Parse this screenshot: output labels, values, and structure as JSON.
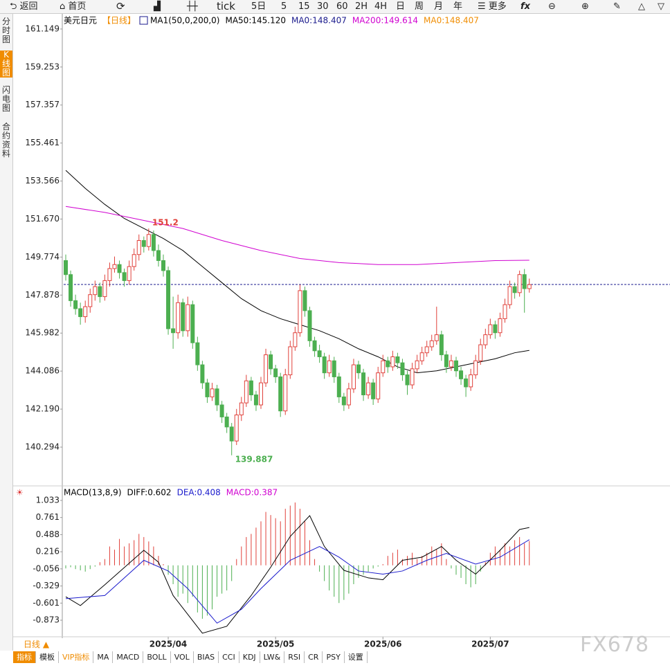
{
  "toolbar": [
    "返回",
    "首页",
    "tick",
    "5日",
    "5",
    "15",
    "30",
    "60",
    "2H",
    "4H",
    "日",
    "周",
    "月",
    "年",
    "更多"
  ],
  "sidebar": [
    "分时图",
    "K线图",
    "闪电图",
    "合约资料"
  ],
  "chart_data": [
    {
      "type": "candlestick",
      "symbol": "美元日元",
      "period": "【日线】",
      "indicator": "MA1(50,0,200,0)",
      "up_color": "#e0403a",
      "down_color": "#4caf50",
      "ylim": [
        138.43,
        161.56
      ],
      "yticks": [
        161.149,
        159.253,
        157.357,
        155.461,
        153.566,
        {
          "value": 151.67,
          "label": "151.670"
        },
        149.774,
        147.878,
        145.982,
        144.086,
        {
          "value": 142.19,
          "label": "142.190"
        },
        140.294
      ],
      "candles": [
        [
          149.6,
          149.9,
          148.6,
          148.9
        ],
        [
          148.9,
          149.1,
          147.3,
          147.6
        ],
        [
          147.6,
          147.9,
          146.9,
          147.2
        ],
        [
          147.2,
          147.5,
          146.4,
          146.8
        ],
        [
          146.8,
          147.6,
          146.5,
          147.3
        ],
        [
          147.3,
          148.2,
          147.0,
          147.9
        ],
        [
          147.9,
          148.6,
          147.6,
          148.3
        ],
        [
          148.3,
          148.5,
          147.5,
          147.8
        ],
        [
          147.8,
          148.9,
          147.6,
          148.6
        ],
        [
          148.6,
          149.5,
          148.3,
          149.2
        ],
        [
          149.2,
          149.8,
          149.0,
          149.4
        ],
        [
          149.4,
          149.6,
          148.7,
          149.0
        ],
        [
          149.0,
          149.2,
          148.3,
          148.6
        ],
        [
          148.6,
          149.6,
          148.4,
          149.3
        ],
        [
          149.3,
          150.2,
          149.1,
          149.9
        ],
        [
          149.9,
          150.9,
          149.6,
          150.6
        ],
        [
          150.6,
          150.8,
          150.0,
          150.3
        ],
        [
          150.3,
          151.2,
          150.1,
          150.9
        ],
        [
          150.9,
          151.1,
          149.8,
          150.1
        ],
        [
          150.1,
          150.4,
          149.3,
          149.6
        ],
        [
          149.6,
          149.9,
          148.8,
          149.1
        ],
        [
          149.1,
          149.3,
          145.9,
          146.2
        ],
        [
          146.2,
          147.8,
          145.2,
          146.0
        ],
        [
          146.0,
          147.9,
          145.7,
          147.5
        ],
        [
          147.5,
          147.7,
          145.8,
          146.1
        ],
        [
          146.1,
          147.8,
          145.8,
          147.4
        ],
        [
          147.4,
          147.6,
          145.2,
          145.5
        ],
        [
          145.5,
          145.8,
          144.1,
          144.4
        ],
        [
          144.4,
          144.6,
          143.2,
          143.5
        ],
        [
          143.5,
          143.7,
          142.5,
          142.8
        ],
        [
          142.8,
          143.5,
          142.6,
          143.2
        ],
        [
          143.2,
          143.4,
          142.1,
          142.4
        ],
        [
          142.4,
          142.6,
          141.5,
          141.8
        ],
        [
          141.8,
          142.0,
          141.0,
          141.3
        ],
        [
          141.3,
          141.5,
          139.887,
          140.6
        ],
        [
          140.6,
          142.2,
          140.4,
          141.9
        ],
        [
          141.9,
          142.8,
          141.6,
          142.5
        ],
        [
          142.5,
          143.9,
          142.3,
          143.6
        ],
        [
          143.6,
          143.8,
          142.6,
          142.9
        ],
        [
          142.9,
          143.1,
          142.1,
          142.4
        ],
        [
          142.4,
          143.8,
          142.2,
          143.5
        ],
        [
          143.5,
          145.2,
          143.3,
          144.9
        ],
        [
          144.9,
          145.1,
          143.9,
          144.2
        ],
        [
          144.2,
          144.4,
          143.5,
          143.8
        ],
        [
          143.8,
          144.0,
          141.8,
          142.1
        ],
        [
          142.1,
          144.2,
          141.9,
          143.9
        ],
        [
          143.9,
          145.6,
          143.7,
          145.3
        ],
        [
          145.3,
          146.3,
          145.1,
          146.0
        ],
        [
          146.0,
          148.4,
          145.8,
          148.1
        ],
        [
          148.1,
          148.3,
          146.8,
          147.1
        ],
        [
          147.1,
          147.3,
          145.3,
          145.6
        ],
        [
          145.6,
          145.8,
          144.8,
          145.1
        ],
        [
          145.1,
          145.4,
          144.5,
          144.8
        ],
        [
          144.8,
          145.0,
          143.7,
          144.0
        ],
        [
          144.0,
          144.9,
          143.8,
          144.6
        ],
        [
          144.6,
          144.8,
          143.5,
          143.8
        ],
        [
          143.8,
          144.0,
          142.5,
          142.8
        ],
        [
          142.8,
          143.0,
          142.1,
          142.4
        ],
        [
          142.4,
          143.5,
          142.2,
          143.2
        ],
        [
          143.2,
          144.7,
          143.0,
          144.4
        ],
        [
          144.4,
          144.6,
          143.7,
          144.0
        ],
        [
          144.0,
          144.2,
          142.6,
          142.9
        ],
        [
          142.9,
          143.8,
          142.7,
          143.5
        ],
        [
          143.5,
          143.7,
          142.4,
          142.7
        ],
        [
          142.7,
          144.3,
          142.5,
          144.0
        ],
        [
          144.0,
          144.9,
          143.8,
          144.6
        ],
        [
          144.6,
          144.8,
          144.0,
          144.3
        ],
        [
          144.3,
          145.1,
          144.1,
          144.8
        ],
        [
          144.8,
          145.0,
          144.2,
          144.5
        ],
        [
          144.5,
          144.7,
          143.6,
          143.9
        ],
        [
          143.9,
          144.1,
          142.9,
          143.4
        ],
        [
          143.4,
          144.5,
          143.2,
          144.2
        ],
        [
          144.2,
          144.9,
          144.0,
          144.6
        ],
        [
          144.6,
          145.3,
          144.4,
          145.0
        ],
        [
          145.0,
          145.6,
          144.8,
          145.3
        ],
        [
          145.3,
          145.9,
          145.1,
          145.6
        ],
        [
          145.6,
          147.3,
          145.4,
          145.9
        ],
        [
          145.9,
          146.1,
          144.6,
          144.9
        ],
        [
          144.9,
          145.1,
          144.0,
          144.3
        ],
        [
          144.3,
          144.9,
          144.1,
          144.6
        ],
        [
          144.6,
          144.8,
          143.8,
          144.1
        ],
        [
          144.1,
          144.3,
          143.4,
          143.7
        ],
        [
          143.7,
          143.9,
          142.8,
          143.3
        ],
        [
          143.3,
          144.2,
          143.1,
          143.9
        ],
        [
          143.9,
          144.9,
          143.7,
          144.6
        ],
        [
          144.6,
          145.7,
          144.4,
          145.4
        ],
        [
          145.4,
          146.2,
          145.2,
          145.9
        ],
        [
          145.9,
          146.7,
          145.7,
          146.4
        ],
        [
          146.4,
          146.6,
          145.7,
          146.0
        ],
        [
          146.0,
          147.0,
          145.8,
          146.7
        ],
        [
          146.7,
          147.7,
          146.5,
          147.4
        ],
        [
          147.4,
          148.6,
          147.2,
          148.3
        ],
        [
          148.3,
          148.5,
          147.7,
          148.0
        ],
        [
          148.0,
          149.1,
          147.8,
          148.9
        ],
        [
          148.9,
          149.181,
          147.0,
          148.2
        ],
        [
          148.2,
          148.7,
          148.0,
          148.4
        ]
      ],
      "series": [
        {
          "name": "MA50:145.120",
          "color": "#000000",
          "x": [
            0,
            4,
            8,
            12,
            16,
            20,
            24,
            28,
            32,
            36,
            40,
            44,
            48,
            52,
            56,
            60,
            64,
            68,
            72,
            76,
            80,
            84,
            88,
            92,
            95
          ],
          "values": [
            154.1,
            153.2,
            152.4,
            151.7,
            151.2,
            150.7,
            150.1,
            149.3,
            148.5,
            147.7,
            147.1,
            146.7,
            146.4,
            146.1,
            145.7,
            145.2,
            144.8,
            144.3,
            144.0,
            144.1,
            144.3,
            144.5,
            144.7,
            145.0,
            145.12
          ]
        },
        {
          "name": "MA0:148.407",
          "color": "#1a1a8c",
          "dashed": true,
          "values": [
            148.407
          ]
        },
        {
          "name": "MA200:149.614",
          "color": "#d000d0",
          "x": [
            0,
            8,
            16,
            24,
            32,
            40,
            48,
            56,
            64,
            72,
            80,
            88,
            95
          ],
          "values": [
            152.3,
            152.0,
            151.6,
            151.2,
            150.6,
            150.1,
            149.7,
            149.5,
            149.4,
            149.4,
            149.5,
            149.6,
            149.614
          ]
        },
        {
          "name": "MA0:148.407",
          "color": "#f08c00",
          "dashed": true,
          "values": [
            148.407
          ]
        }
      ]
    },
    {
      "type": "macd",
      "title": "MACD(13,8,9)",
      "ylim": [
        -1.137,
        1.198
      ],
      "yticks": [
        1.033,
        0.761,
        0.488,
        0.216,
        -0.056,
        -0.329,
        -0.601,
        -0.873
      ],
      "xticks": [
        {
          "value": 21,
          "label": "2025/04"
        },
        {
          "value": 43,
          "label": "2025/05"
        },
        {
          "value": 65,
          "label": "2025/06"
        },
        {
          "value": 87,
          "label": "2025/07"
        }
      ],
      "series": [
        {
          "name": "DIFF:0.602",
          "color": "#000000",
          "x": [
            0,
            3,
            8,
            16,
            19,
            22,
            28,
            33,
            38,
            42,
            46,
            50,
            53,
            57,
            62,
            65,
            69,
            73,
            77,
            80,
            84,
            89,
            93,
            95
          ],
          "values": [
            -0.5,
            -0.64,
            -0.31,
            0.24,
            0.05,
            -0.48,
            -1.08,
            -0.97,
            -0.48,
            -0.03,
            0.46,
            0.79,
            0.3,
            -0.08,
            -0.2,
            -0.23,
            0.08,
            0.13,
            0.3,
            0.08,
            -0.14,
            0.24,
            0.57,
            0.602
          ]
        },
        {
          "name": "DEA:0.408",
          "color": "#1a1acc",
          "x": [
            0,
            8,
            16,
            21,
            25,
            31,
            36,
            40,
            46,
            52,
            56,
            60,
            65,
            69,
            74,
            78,
            84,
            89,
            95
          ],
          "values": [
            -0.53,
            -0.48,
            0.08,
            -0.09,
            -0.37,
            -0.92,
            -0.7,
            -0.37,
            0.08,
            0.3,
            0.13,
            -0.09,
            -0.14,
            -0.09,
            0.08,
            0.19,
            0.02,
            0.13,
            0.408
          ]
        }
      ],
      "histogram": {
        "name": "MACD:0.387",
        "color": "#d000d0",
        "up_color": "#e0403a",
        "down_color": "#4caf50",
        "values": [
          -0.05,
          -0.03,
          -0.06,
          -0.08,
          -0.1,
          -0.06,
          -0.02,
          0.05,
          0.1,
          0.3,
          0.25,
          0.42,
          0.3,
          0.35,
          0.4,
          0.5,
          0.45,
          0.38,
          0.3,
          0.15,
          0.02,
          -0.15,
          -0.3,
          -0.5,
          -0.45,
          -0.6,
          -0.5,
          -0.75,
          -0.85,
          -0.8,
          -0.7,
          -0.5,
          -0.45,
          -0.4,
          -0.25,
          0.1,
          0.3,
          0.45,
          0.5,
          0.6,
          0.7,
          0.85,
          0.8,
          0.75,
          0.7,
          0.9,
          0.95,
          1.0,
          0.9,
          0.7,
          0.4,
          0.1,
          -0.1,
          -0.25,
          -0.4,
          -0.5,
          -0.6,
          -0.55,
          -0.45,
          -0.3,
          -0.2,
          -0.15,
          -0.1,
          -0.05,
          -0.02,
          0.02,
          0.15,
          0.2,
          0.25,
          0.1,
          0.15,
          0.2,
          0.1,
          0.15,
          0.2,
          0.3,
          0.25,
          0.35,
          0.1,
          -0.05,
          -0.15,
          -0.2,
          -0.3,
          -0.35,
          -0.3,
          -0.1,
          0.05,
          0.2,
          0.3,
          0.25,
          0.35,
          0.3,
          0.4,
          0.45,
          0.35,
          0.387
        ]
      }
    }
  ],
  "period_selector": "日线 ▲",
  "tabs": [
    "指标",
    "模板",
    "VIP指标",
    "MA",
    "MACD",
    "BOLL",
    "VOL",
    "BIAS",
    "CCI",
    "KDJ",
    "LW&",
    "RSI",
    "CR",
    "PSY",
    "设置"
  ],
  "watermark": "FX678"
}
